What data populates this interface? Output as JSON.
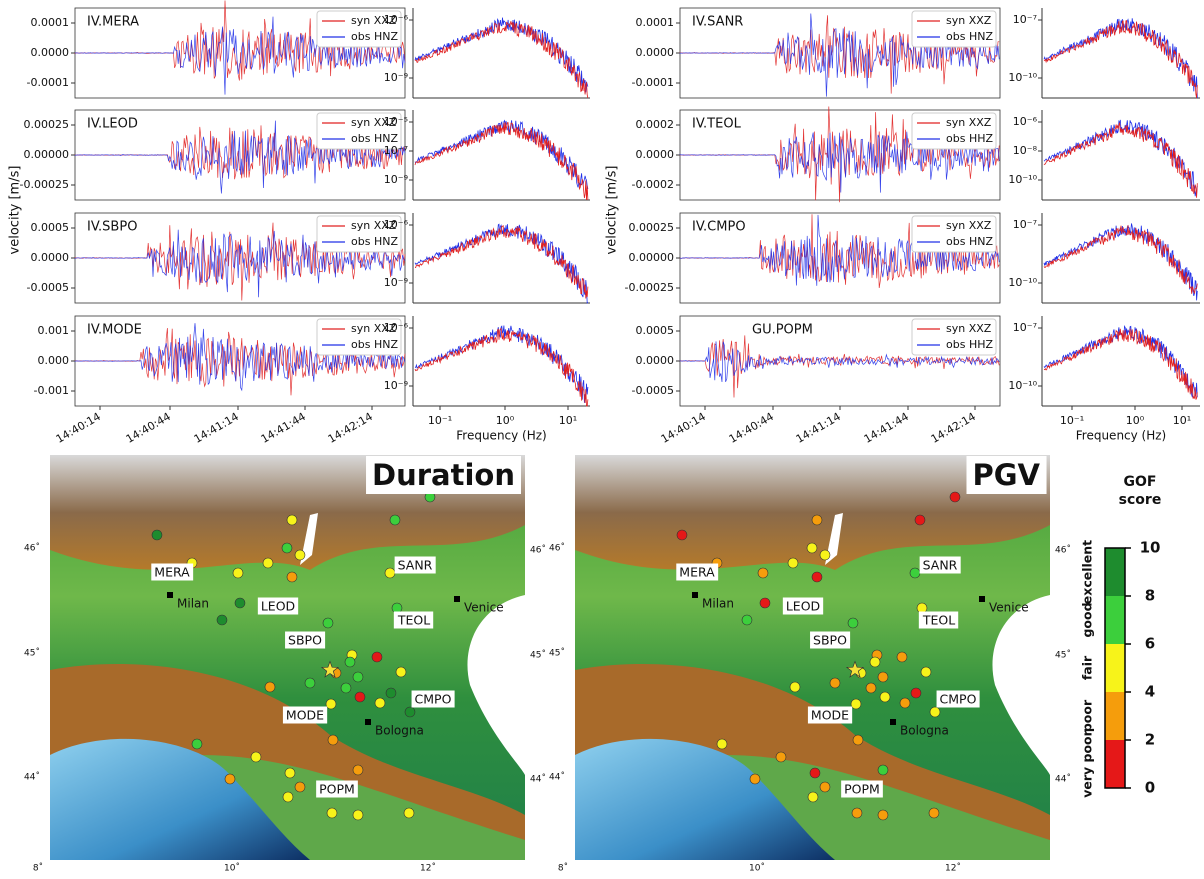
{
  "groups": [
    {
      "ylabel": "velocity [m/s]",
      "xticks": [
        "14:40:14",
        "14:40:44",
        "14:41:14",
        "14:41:44",
        "14:42:14"
      ],
      "spec_xticks": [
        "10⁻¹",
        "10⁰",
        "10¹"
      ],
      "spec_xlabel": "Frequency (Hz)",
      "panels": [
        {
          "station": "IV.MERA",
          "legend": [
            "syn XXZ",
            "obs HNZ"
          ],
          "yticks": [
            "0.0001",
            "0.0000",
            "-0.0001"
          ],
          "spec_yticks": [
            "10⁻⁶",
            "10⁻⁹"
          ]
        },
        {
          "station": "IV.LEOD",
          "legend": [
            "syn XXZ",
            "obs HNZ"
          ],
          "yticks": [
            "0.00025",
            "0.00000",
            "-0.00025"
          ],
          "spec_yticks": [
            "10⁻⁵",
            "10⁻⁷",
            "10⁻⁹"
          ]
        },
        {
          "station": "IV.SBPO",
          "legend": [
            "syn XXZ",
            "obs HNZ"
          ],
          "yticks": [
            "0.0005",
            "0.0000",
            "-0.0005"
          ],
          "spec_yticks": [
            "10⁻⁶",
            "10⁻⁹"
          ]
        },
        {
          "station": "IV.MODE",
          "legend": [
            "syn XXZ",
            "obs HNZ"
          ],
          "yticks": [
            "0.001",
            "0.000",
            "-0.001"
          ],
          "spec_yticks": [
            "10⁻⁶",
            "10⁻⁹"
          ]
        }
      ]
    },
    {
      "ylabel": "velocity [m/s]",
      "xticks": [
        "14:40:14",
        "14:40:44",
        "14:41:14",
        "14:41:44",
        "14:42:14"
      ],
      "spec_xticks": [
        "10⁻¹",
        "10⁰",
        "10¹"
      ],
      "spec_xlabel": "Frequency (Hz)",
      "panels": [
        {
          "station": "IV.SANR",
          "legend": [
            "syn XXZ",
            "obs HNZ"
          ],
          "yticks": [
            "0.0001",
            "0.0000",
            "-0.0001"
          ],
          "spec_yticks": [
            "10⁻⁷",
            "10⁻¹⁰"
          ]
        },
        {
          "station": "IV.TEOL",
          "legend": [
            "syn XXZ",
            "obs HHZ"
          ],
          "yticks": [
            "0.0002",
            "0.0000",
            "-0.0002"
          ],
          "spec_yticks": [
            "10⁻⁶",
            "10⁻⁸",
            "10⁻¹⁰"
          ]
        },
        {
          "station": "IV.CMPO",
          "legend": [
            "syn XXZ",
            "obs HNZ"
          ],
          "yticks": [
            "0.00025",
            "0.00000",
            "-0.00025"
          ],
          "spec_yticks": [
            "10⁻⁷",
            "10⁻¹⁰"
          ]
        },
        {
          "station": "GU.POPM",
          "legend": [
            "syn XXZ",
            "obs HHZ"
          ],
          "yticks": [
            "0.0005",
            "0.0000",
            "-0.0005"
          ],
          "spec_yticks": [
            "10⁻⁷",
            "10⁻¹⁰"
          ]
        }
      ]
    }
  ],
  "maps": [
    {
      "title": "Duration",
      "lat_ticks": [
        "46˚",
        "45˚",
        "44˚"
      ],
      "lon_ticks": [
        "8˚",
        "10˚",
        "12˚"
      ],
      "stations": [
        "MERA",
        "LEOD",
        "SANR",
        "TEOL",
        "SBPO",
        "MODE",
        "CMPO",
        "POPM"
      ],
      "cities": [
        "Milan",
        "Venice",
        "Bologna"
      ]
    },
    {
      "title": "PGV",
      "lat_ticks": [
        "46˚",
        "45˚",
        "44˚"
      ],
      "lon_ticks": [
        "8˚",
        "10˚",
        "12˚"
      ],
      "stations": [
        "MERA",
        "LEOD",
        "SANR",
        "TEOL",
        "SBPO",
        "MODE",
        "CMPO",
        "POPM"
      ],
      "cities": [
        "Milan",
        "Venice",
        "Bologna"
      ]
    }
  ],
  "colorbar": {
    "title": [
      "GOF",
      "score"
    ],
    "ticks": [
      "0",
      "2",
      "4",
      "6",
      "8",
      "10"
    ],
    "classes": [
      "very poor",
      "poor",
      "fair",
      "good",
      "excellent"
    ]
  }
}
